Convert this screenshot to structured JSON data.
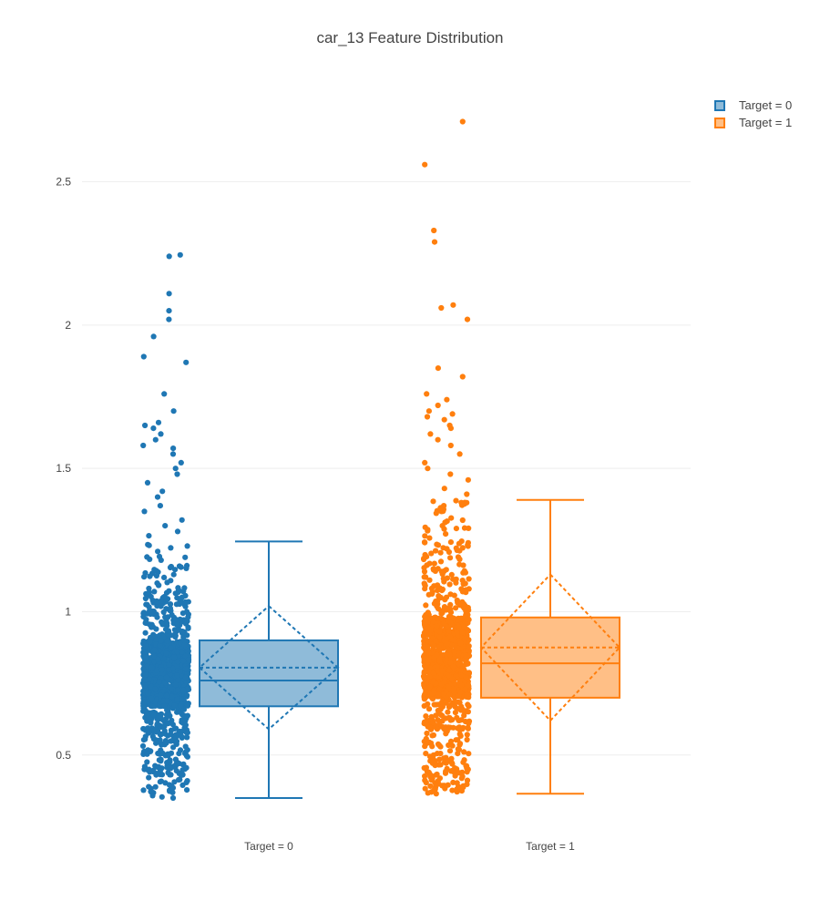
{
  "chart_data": {
    "type": "box",
    "title": "car_13 Feature Distribution",
    "xlabel": "",
    "ylabel": "",
    "categories": [
      "Target = 0",
      "Target = 1"
    ],
    "y_ticks": [
      "0.5",
      "1",
      "1.5",
      "2",
      "2.5"
    ],
    "y_tick_values": [
      0.5,
      1,
      1.5,
      2,
      2.5
    ],
    "ylim": [
      0.28,
      2.88
    ],
    "grid": true,
    "legend_position": "top-right",
    "boxpoints": "all",
    "boxmean": "sd",
    "series": [
      {
        "name": "Target = 0",
        "color": "#1f77b4",
        "fill": "rgba(31,119,180,0.5)",
        "min": 0.35,
        "q1": 0.67,
        "median": 0.76,
        "q3": 0.9,
        "max": 1.245,
        "mean": 0.805,
        "sd": 0.215,
        "n_points": 1400,
        "outliers": [
          1.265,
          1.28,
          1.3,
          1.32,
          1.35,
          1.37,
          1.4,
          1.42,
          1.45,
          1.48,
          1.5,
          1.52,
          1.55,
          1.57,
          1.58,
          1.6,
          1.62,
          1.64,
          1.65,
          1.66,
          1.7,
          1.76,
          1.87,
          1.89,
          1.96,
          2.02,
          2.05,
          2.11,
          2.24,
          2.245
        ]
      },
      {
        "name": "Target = 1",
        "color": "#ff7f0e",
        "fill": "rgba(255,127,14,0.5)",
        "min": 0.365,
        "q1": 0.7,
        "median": 0.82,
        "q3": 0.98,
        "max": 1.39,
        "mean": 0.875,
        "sd": 0.255,
        "n_points": 1300,
        "outliers": [
          1.41,
          1.43,
          1.46,
          1.48,
          1.5,
          1.52,
          1.55,
          1.58,
          1.6,
          1.62,
          1.64,
          1.65,
          1.67,
          1.68,
          1.69,
          1.7,
          1.72,
          1.74,
          1.76,
          1.82,
          1.85,
          2.02,
          2.06,
          2.07,
          2.29,
          2.33,
          2.56,
          2.71
        ]
      }
    ]
  }
}
